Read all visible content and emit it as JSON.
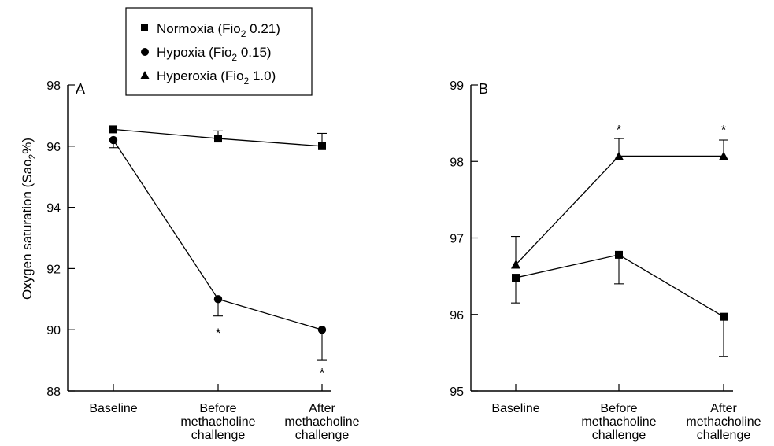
{
  "chart_data": [
    {
      "type": "line",
      "panel_label": "A",
      "ylabel": "Oxygen saturation (Sao₂%)",
      "ylim": [
        88,
        98
      ],
      "yticks": [
        "88",
        "90",
        "92",
        "94",
        "96",
        "98"
      ],
      "categories": [
        [
          "Baseline"
        ],
        [
          "Before",
          "methacholine",
          "challenge"
        ],
        [
          "After",
          "methacholine",
          "challenge"
        ]
      ],
      "series": [
        {
          "name": "Normoxia (Fio₂ 0.21)",
          "marker": "square",
          "values": [
            96.55,
            96.25,
            96.0
          ],
          "error": [
            [
              96.55,
              96.55
            ],
            [
              96.25,
              96.5
            ],
            [
              96.0,
              96.42
            ]
          ]
        },
        {
          "name": "Hypoxia (Fio₂ 0.15)",
          "marker": "circle",
          "values": [
            96.2,
            91.0,
            90.0
          ],
          "error": [
            [
              95.95,
              96.2
            ],
            [
              90.45,
              91.0
            ],
            [
              89.0,
              90.0
            ]
          ]
        }
      ],
      "annotations": [
        {
          "text": "*",
          "category": 1,
          "value": 89.9
        },
        {
          "text": "*",
          "category": 2,
          "value": 88.6
        }
      ]
    },
    {
      "type": "line",
      "panel_label": "B",
      "ylabel": "",
      "ylim": [
        95,
        99
      ],
      "yticks": [
        "95",
        "96",
        "97",
        "98",
        "99"
      ],
      "categories": [
        [
          "Baseline"
        ],
        [
          "Before",
          "methacholine",
          "challenge"
        ],
        [
          "After",
          "methacholine",
          "challenge"
        ]
      ],
      "series": [
        {
          "name": "Hyperoxia (Fio₂ 1.0)",
          "marker": "triangle",
          "values": [
            96.65,
            98.07,
            98.07
          ],
          "error": [
            [
              96.65,
              97.02
            ],
            [
              98.07,
              98.3
            ],
            [
              98.07,
              98.28
            ]
          ]
        },
        {
          "name": "Normoxia (Fio₂ 0.21)",
          "marker": "square",
          "values": [
            96.48,
            96.78,
            95.97
          ],
          "error": [
            [
              96.15,
              96.48
            ],
            [
              96.4,
              96.78
            ],
            [
              95.45,
              95.97
            ]
          ]
        }
      ],
      "annotations": [
        {
          "text": "*",
          "category": 1,
          "value": 98.42
        },
        {
          "text": "*",
          "category": 2,
          "value": 98.42
        }
      ]
    }
  ],
  "legend": {
    "items": [
      {
        "marker": "square",
        "label": "Normoxia (Fio",
        "sub": "2",
        "value": " 0.21)"
      },
      {
        "marker": "circle",
        "label": "Hypoxia (Fio",
        "sub": "2",
        "value": " 0.15)"
      },
      {
        "marker": "triangle",
        "label": "Hyperoxia (Fio",
        "sub": "2",
        "value": " 1.0)"
      }
    ]
  },
  "ylabel_parts": {
    "main": "Oxygen saturation (Sao",
    "sub": "2",
    "tail": "%)"
  }
}
